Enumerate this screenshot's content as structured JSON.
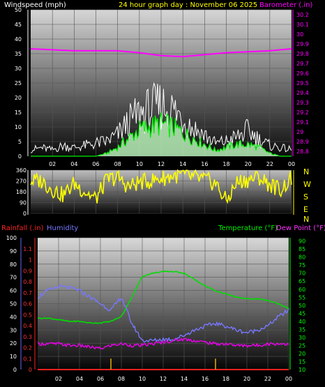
{
  "header": {
    "left": "Windspeed (mph)",
    "center": "24 hour graph day : November 06 2025",
    "right": "Barometer (.in)"
  },
  "legend2": {
    "rain": "Rainfall (.in)",
    "humidity": "Humidity",
    "temperature": "Temperature (°F)",
    "dewpoint": "Dew Point (°F)"
  },
  "colors": {
    "barometer": "#ff00ff",
    "wind_gust": "#ffffff",
    "wind_avg": "#00ee00",
    "wind_fill": "#b8f0b8",
    "direction": "#ffff00",
    "temperature": "#00dd00",
    "humidity": "#7777ff",
    "dewpoint": "#ee00ee",
    "rain": "#ff2222",
    "rain_bar": "#e8b000",
    "axis_left": "#ffffff",
    "axis_right": "#ff00ff",
    "axis_temp": "#00ff00",
    "axis_hum": "#6666ff"
  },
  "chart_data": [
    {
      "type": "line",
      "title": "24 hour graph day : November 06 2025",
      "x_ticks": [
        "02",
        "04",
        "06",
        "08",
        "10",
        "12",
        "14",
        "16",
        "18",
        "20",
        "22",
        "00"
      ],
      "y_left_label": "Windspeed (mph)",
      "y_left_ticks": [
        0,
        5,
        10,
        15,
        20,
        25,
        30,
        35,
        40,
        45,
        50
      ],
      "y_left_lim": [
        0,
        50
      ],
      "y_right_label": "Barometer (.in)",
      "y_right_ticks": [
        "28.8",
        "28.9",
        "29",
        "29.1",
        "29.2",
        "29.3",
        "29.4",
        "29.5",
        "29.6",
        "29.7",
        "29.8",
        "29.9",
        "30",
        "30.1",
        "30.2"
      ],
      "y_right_lim": [
        28.75,
        30.25
      ],
      "series": [
        {
          "name": "Barometer",
          "hours": [
            0,
            2,
            4,
            6,
            8,
            10,
            12,
            14,
            16,
            18,
            20,
            22,
            24
          ],
          "values": [
            29.85,
            29.84,
            29.83,
            29.83,
            29.83,
            29.81,
            29.78,
            29.77,
            29.79,
            29.81,
            29.82,
            29.83,
            29.85
          ]
        },
        {
          "name": "Wind gust",
          "hours": [
            0,
            1,
            2,
            3,
            4,
            5,
            6,
            7,
            8,
            9,
            10,
            11,
            12,
            13,
            14,
            15,
            16,
            17,
            18,
            19,
            20,
            21,
            22,
            23,
            24
          ],
          "values": [
            3,
            4,
            3,
            5,
            4,
            5,
            6,
            7,
            10,
            16,
            20,
            22,
            24,
            22,
            18,
            13,
            10,
            6,
            7,
            9,
            12,
            8,
            5,
            4,
            3
          ]
        },
        {
          "name": "Wind average",
          "hours": [
            0,
            1,
            2,
            3,
            4,
            5,
            6,
            7,
            8,
            9,
            10,
            11,
            12,
            13,
            14,
            15,
            16,
            17,
            18,
            19,
            20,
            21,
            22,
            23,
            24
          ],
          "values": [
            0,
            0,
            0,
            0,
            0,
            0,
            0,
            1,
            3,
            6,
            9,
            10,
            11,
            10,
            8,
            6,
            4,
            2,
            3,
            4,
            4,
            3,
            1,
            0,
            0
          ]
        }
      ]
    },
    {
      "type": "line",
      "title": "",
      "x_ticks": [
        "02",
        "04",
        "06",
        "08",
        "10",
        "12",
        "14",
        "16",
        "18",
        "20",
        "22",
        "00"
      ],
      "y_ticks": [
        0,
        90,
        180,
        270,
        360
      ],
      "y_lim": [
        0,
        360
      ],
      "right_labels": [
        "N",
        "W",
        "S",
        "E",
        "N"
      ],
      "series": [
        {
          "name": "Wind direction",
          "hours": [
            0,
            1,
            2,
            3,
            4,
            5,
            6,
            7,
            8,
            9,
            10,
            11,
            12,
            13,
            14,
            15,
            16,
            17,
            18,
            19,
            20,
            21,
            22,
            23,
            24
          ],
          "values": [
            270,
            270,
            200,
            150,
            250,
            180,
            120,
            280,
            300,
            220,
            260,
            270,
            290,
            310,
            320,
            300,
            280,
            250,
            100,
            260,
            280,
            300,
            240,
            200,
            290
          ]
        }
      ]
    },
    {
      "type": "line",
      "title": "",
      "x_ticks": [
        "02",
        "04",
        "06",
        "08",
        "10",
        "12",
        "14",
        "16",
        "18",
        "20",
        "22",
        "00"
      ],
      "y_hum_ticks": [
        0,
        10,
        20,
        30,
        40,
        50,
        60,
        70,
        80,
        90,
        100
      ],
      "y_hum_lim": [
        0,
        100
      ],
      "y_rain_ticks": [
        "0",
        "0.1",
        "0.2",
        "0.3",
        "0.4",
        "0.5",
        "0.6",
        "0.7",
        "0.8",
        "0.9",
        "1",
        "1.1"
      ],
      "y_rain_lim": [
        0,
        1.2
      ],
      "y_temp_ticks": [
        10,
        15,
        20,
        25,
        30,
        35,
        40,
        45,
        50,
        55,
        60,
        65,
        70,
        75,
        80,
        85,
        90
      ],
      "y_temp_lim": [
        10,
        92
      ],
      "series": [
        {
          "name": "Temperature",
          "hours": [
            0,
            1,
            2,
            3,
            4,
            5,
            6,
            7,
            8,
            9,
            10,
            11,
            12,
            13,
            14,
            15,
            16,
            17,
            18,
            19,
            20,
            21,
            22,
            23,
            24
          ],
          "values": [
            42,
            42,
            41,
            40,
            40,
            39,
            39,
            40,
            43,
            55,
            68,
            70,
            71,
            71,
            70,
            66,
            62,
            59,
            57,
            55,
            54,
            54,
            53,
            51,
            48
          ]
        },
        {
          "name": "Humidity",
          "hours": [
            0,
            1,
            2,
            3,
            4,
            5,
            6,
            7,
            8,
            9,
            10,
            11,
            12,
            13,
            14,
            15,
            16,
            17,
            18,
            19,
            20,
            21,
            22,
            23,
            24
          ],
          "values": [
            55,
            60,
            63,
            62,
            60,
            55,
            50,
            45,
            55,
            35,
            22,
            22,
            23,
            23,
            26,
            30,
            33,
            35,
            33,
            30,
            28,
            30,
            33,
            40,
            45
          ]
        },
        {
          "name": "Dew Point",
          "hours": [
            0,
            1,
            2,
            3,
            4,
            5,
            6,
            7,
            8,
            9,
            10,
            11,
            12,
            13,
            14,
            15,
            16,
            17,
            18,
            19,
            20,
            21,
            22,
            23,
            24
          ],
          "values": [
            26,
            26,
            26,
            25,
            25,
            24,
            23,
            25,
            26,
            25,
            25,
            26,
            27,
            28,
            29,
            28,
            27,
            26,
            26,
            25,
            25,
            25,
            26,
            26,
            26
          ]
        },
        {
          "name": "Rainfall",
          "hours": [
            0,
            24
          ],
          "values": [
            0,
            0
          ]
        }
      ],
      "rain_marks_hours": [
        7,
        17
      ],
      "rain_marks_values": [
        0.1,
        0.1
      ]
    }
  ]
}
